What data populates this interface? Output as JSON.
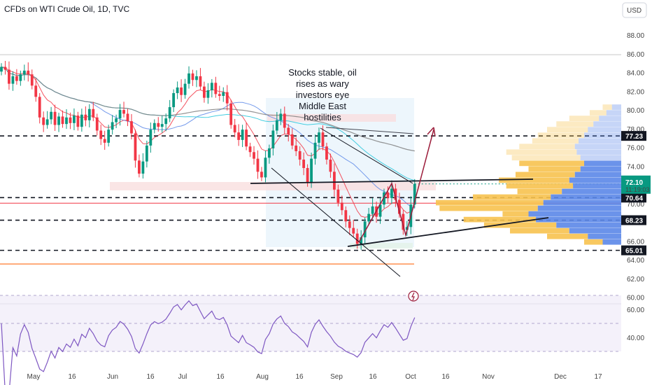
{
  "header": {
    "title": "CFDs on WTI Crude Oil, 1D, TVC",
    "currency": "USD"
  },
  "chart_data": {
    "type": "candlestick",
    "price_axis": {
      "ticks": [
        "88.00",
        "86.00",
        "84.00",
        "82.00",
        "80.00",
        "78.00",
        "76.00",
        "74.00",
        "72.00",
        "70.00",
        "68.00",
        "66.00",
        "64.00",
        "62.00",
        "60.00"
      ],
      "values": [
        88,
        86,
        84,
        82,
        80,
        78,
        76,
        74,
        72,
        70,
        68,
        66,
        64,
        62,
        60
      ],
      "ylim": [
        59.6,
        89.5
      ]
    },
    "rsi_axis": {
      "ticks": [
        "60.00",
        "40.00"
      ],
      "values": [
        60,
        40
      ],
      "ylim": [
        22,
        62
      ],
      "band": [
        30,
        70
      ],
      "midline": 50
    },
    "time_axis": {
      "ticks": [
        "May",
        "16",
        "Jun",
        "16",
        "Jul",
        "16",
        "Aug",
        "16",
        "Sep",
        "16",
        "Oct",
        "16",
        "Nov",
        "Dec",
        "17"
      ]
    },
    "series": [
      {
        "name": "",
        "closes": [
          84.6,
          84.3,
          82.8,
          83.6,
          83.1,
          83.8,
          84.2,
          83.8,
          82.6,
          81.4,
          79.2,
          78.4,
          79.0,
          79.8,
          78.4,
          79.3,
          78.5,
          79.2,
          78.6,
          79.4,
          78.2,
          79.5,
          78.9,
          80.1,
          79.2,
          77.8,
          76.9,
          76.5,
          77.9,
          78.7,
          79.1,
          80.0,
          79.6,
          78.8,
          77.5,
          74.6,
          73.2,
          74.5,
          76.2,
          77.9,
          78.6,
          78.2,
          78.5,
          79.1,
          80.3,
          81.8,
          82.4,
          81.6,
          82.8,
          83.9,
          83.2,
          83.6,
          82.5,
          81.3,
          82.1,
          82.9,
          81.7,
          81.5,
          81.9,
          80.7,
          78.4,
          77.6,
          76.8,
          77.9,
          76.1,
          75.5,
          74.8,
          73.4,
          72.8,
          74.9,
          75.9,
          77.8,
          78.9,
          79.6,
          78.1,
          77.4,
          76.2,
          75.6,
          74.7,
          73.8,
          72.2,
          74.8,
          76.5,
          77.6,
          76.1,
          74.7,
          73.4,
          71.5,
          70.1,
          69.3,
          68.1,
          67.4,
          66.8,
          65.7,
          66.4,
          68.1,
          68.9,
          69.7,
          68.6,
          69.9,
          71.2,
          70.6,
          71.6,
          70.4,
          68.9,
          67.2,
          67.5,
          69.9,
          72.1
        ]
      }
    ],
    "volume_profile": {
      "rows": [
        {
          "price": 80.3,
          "up": 0.05,
          "total": 0.1
        },
        {
          "price": 79.7,
          "up": 0.08,
          "total": 0.17
        },
        {
          "price": 79.1,
          "up": 0.12,
          "total": 0.28
        },
        {
          "price": 78.5,
          "up": 0.15,
          "total": 0.35
        },
        {
          "price": 77.9,
          "up": 0.18,
          "total": 0.4
        },
        {
          "price": 77.3,
          "up": 0.2,
          "total": 0.45
        },
        {
          "price": 76.7,
          "up": 0.23,
          "total": 0.48
        },
        {
          "price": 76.1,
          "up": 0.25,
          "total": 0.55
        },
        {
          "price": 75.5,
          "up": 0.24,
          "total": 0.62
        },
        {
          "price": 74.9,
          "up": 0.22,
          "total": 0.59
        },
        {
          "price": 74.3,
          "up": 0.2,
          "total": 0.55
        },
        {
          "price": 73.7,
          "up": 0.22,
          "total": 0.5
        },
        {
          "price": 73.1,
          "up": 0.25,
          "total": 0.57
        },
        {
          "price": 72.5,
          "up": 0.28,
          "total": 0.66
        },
        {
          "price": 71.9,
          "up": 0.26,
          "total": 0.62
        },
        {
          "price": 71.3,
          "up": 0.32,
          "total": 0.56
        },
        {
          "price": 70.7,
          "up": 0.38,
          "total": 0.8
        },
        {
          "price": 70.1,
          "up": 0.42,
          "total": 1.0
        },
        {
          "price": 69.5,
          "up": 0.45,
          "total": 0.98
        },
        {
          "price": 68.9,
          "up": 0.5,
          "total": 0.64
        },
        {
          "price": 68.3,
          "up": 0.46,
          "total": 0.85
        },
        {
          "price": 67.7,
          "up": 0.35,
          "total": 0.74
        },
        {
          "price": 67.1,
          "up": 0.28,
          "total": 0.6
        },
        {
          "price": 66.5,
          "up": 0.18,
          "total": 0.4
        },
        {
          "price": 65.9,
          "up": 0.1,
          "total": 0.2
        }
      ]
    },
    "horizontal_levels": [
      {
        "label": "77.23",
        "value": 77.23
      },
      {
        "label": "70.64",
        "value": 70.64
      },
      {
        "label": "68.23",
        "value": 68.23
      },
      {
        "label": "65.01",
        "value": 65.01
      }
    ],
    "last_price": {
      "label": "72.10",
      "value": 72.1,
      "countdown": "11:19:03"
    },
    "reference_lines": [
      {
        "value": 85.9
      },
      {
        "value": 70.05
      },
      {
        "value": 63.55
      }
    ],
    "annotation": {
      "text_lines": [
        "Stocks stable, oil",
        "rises as wary",
        "investors eye",
        "Middle East",
        "hostilities"
      ]
    },
    "colors": {
      "up": "#089981",
      "down": "#f23645",
      "rsi": "#7e57c2",
      "vp_up": "#5b87e8",
      "vp_down": "#f7c24f",
      "arrow": "#9c1d3b",
      "ma_fast": "#f23645",
      "ma_mid": "#5b87e8",
      "ma_slow": "#26c6da",
      "ma_long": "#808080"
    }
  }
}
